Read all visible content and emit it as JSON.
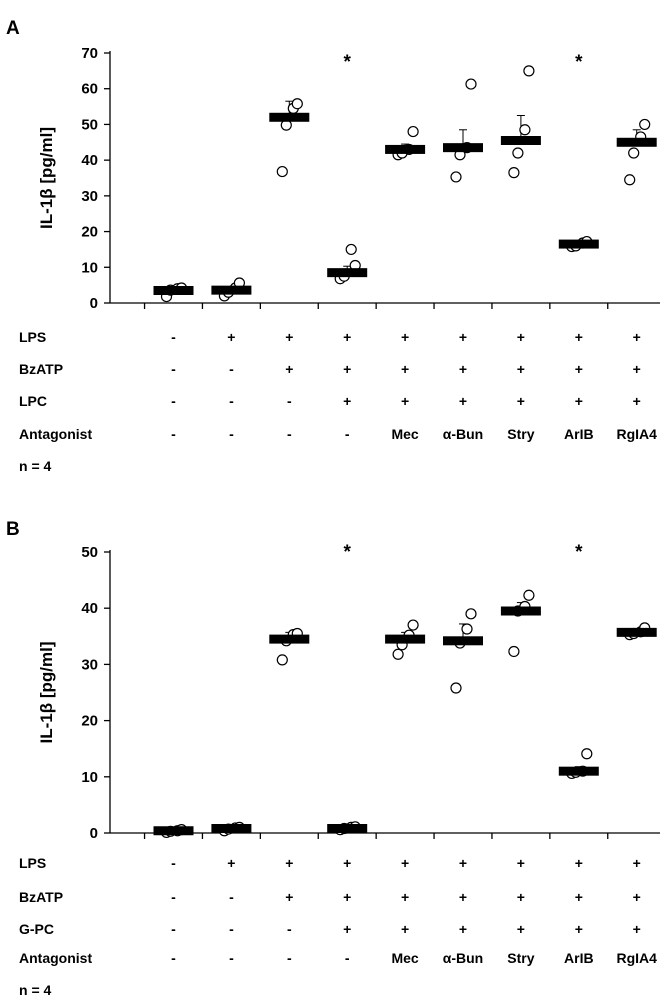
{
  "chart_data": [
    {
      "panel": "A",
      "type": "scatter",
      "ylabel": "IL-1β [pg/ml]",
      "ylim": [
        0,
        70
      ],
      "yticks": [
        "0",
        "10",
        "20",
        "30",
        "40",
        "50",
        "60",
        "70"
      ],
      "grid": false,
      "legend": "none",
      "groups": [
        {
          "mean": 3.5,
          "err": 0.8,
          "points": [
            1.8,
            3.6,
            4.0,
            4.2
          ],
          "star": ""
        },
        {
          "mean": 3.6,
          "err": 0.9,
          "points": [
            2.0,
            3.0,
            4.2,
            5.6
          ],
          "star": ""
        },
        {
          "mean": 52.0,
          "err": 4.5,
          "points": [
            36.8,
            49.8,
            54.5,
            55.8
          ],
          "star": ""
        },
        {
          "mean": 8.5,
          "err": 1.8,
          "points": [
            6.8,
            7.5,
            15.0,
            10.5
          ],
          "star": "*"
        },
        {
          "mean": 43.0,
          "err": 1.5,
          "points": [
            41.5,
            42.0,
            43.0,
            48.0
          ],
          "star": ""
        },
        {
          "mean": 43.5,
          "err": 5.0,
          "points": [
            35.3,
            41.5,
            43.5,
            61.3
          ],
          "star": ""
        },
        {
          "mean": 45.5,
          "err": 7.0,
          "points": [
            36.5,
            42.0,
            48.5,
            65.0
          ],
          "star": ""
        },
        {
          "mean": 16.5,
          "err": 0.5,
          "points": [
            15.8,
            16.0,
            16.8,
            17.2
          ],
          "star": "*"
        },
        {
          "mean": 45.0,
          "err": 3.5,
          "points": [
            34.5,
            42.0,
            46.5,
            50.0
          ],
          "star": ""
        }
      ],
      "treatments": [
        {
          "label": "LPS",
          "values": [
            "-",
            "+",
            "+",
            "+",
            "+",
            "+",
            "+",
            "+",
            "+"
          ]
        },
        {
          "label": "BzATP",
          "values": [
            "-",
            "-",
            "+",
            "+",
            "+",
            "+",
            "+",
            "+",
            "+"
          ]
        },
        {
          "label": "LPC",
          "values": [
            "-",
            "-",
            "-",
            "+",
            "+",
            "+",
            "+",
            "+",
            "+"
          ]
        },
        {
          "label": "Antagonist",
          "values": [
            "-",
            "-",
            "-",
            "-",
            "Mec",
            "α-Bun",
            "Stry",
            "ArIB",
            "RgIA4"
          ]
        }
      ],
      "n_label": "n = 4"
    },
    {
      "panel": "B",
      "type": "scatter",
      "ylabel": "IL-1β [pg/ml]",
      "ylim": [
        0,
        50
      ],
      "yticks": [
        "0",
        "10",
        "20",
        "30",
        "40",
        "50"
      ],
      "grid": false,
      "legend": "none",
      "groups": [
        {
          "mean": 0.4,
          "err": 0.2,
          "points": [
            0.1,
            0.3,
            0.4,
            0.6
          ],
          "star": ""
        },
        {
          "mean": 0.8,
          "err": 0.2,
          "points": [
            0.4,
            0.7,
            0.9,
            1.0
          ],
          "star": ""
        },
        {
          "mean": 34.5,
          "err": 1.2,
          "points": [
            30.8,
            34.2,
            35.3,
            35.5
          ],
          "star": ""
        },
        {
          "mean": 0.8,
          "err": 0.2,
          "points": [
            0.6,
            0.8,
            1.0,
            1.1
          ],
          "star": "*"
        },
        {
          "mean": 34.5,
          "err": 1.2,
          "points": [
            31.8,
            33.5,
            35.2,
            37.0
          ],
          "star": ""
        },
        {
          "mean": 34.2,
          "err": 3.0,
          "points": [
            25.8,
            33.8,
            36.3,
            39.0
          ],
          "star": ""
        },
        {
          "mean": 39.5,
          "err": 1.5,
          "points": [
            32.3,
            39.5,
            40.3,
            42.3
          ],
          "star": ""
        },
        {
          "mean": 11.0,
          "err": 0.8,
          "points": [
            10.6,
            10.8,
            11.0,
            14.1
          ],
          "star": "*"
        },
        {
          "mean": 35.7,
          "err": 0.4,
          "points": [
            35.3,
            35.5,
            35.8,
            36.5
          ],
          "star": ""
        }
      ],
      "treatments": [
        {
          "label": "LPS",
          "values": [
            "-",
            "+",
            "+",
            "+",
            "+",
            "+",
            "+",
            "+",
            "+"
          ]
        },
        {
          "label": "BzATP",
          "values": [
            "-",
            "-",
            "+",
            "+",
            "+",
            "+",
            "+",
            "+",
            "+"
          ]
        },
        {
          "label": "G-PC",
          "values": [
            "-",
            "-",
            "-",
            "+",
            "+",
            "+",
            "+",
            "+",
            "+"
          ]
        },
        {
          "label": "Antagonist",
          "values": [
            "-",
            "-",
            "-",
            "-",
            "Mec",
            "α-Bun",
            "Stry",
            "ArIB",
            "RgIA4"
          ]
        }
      ],
      "n_label": "n = 4"
    }
  ]
}
